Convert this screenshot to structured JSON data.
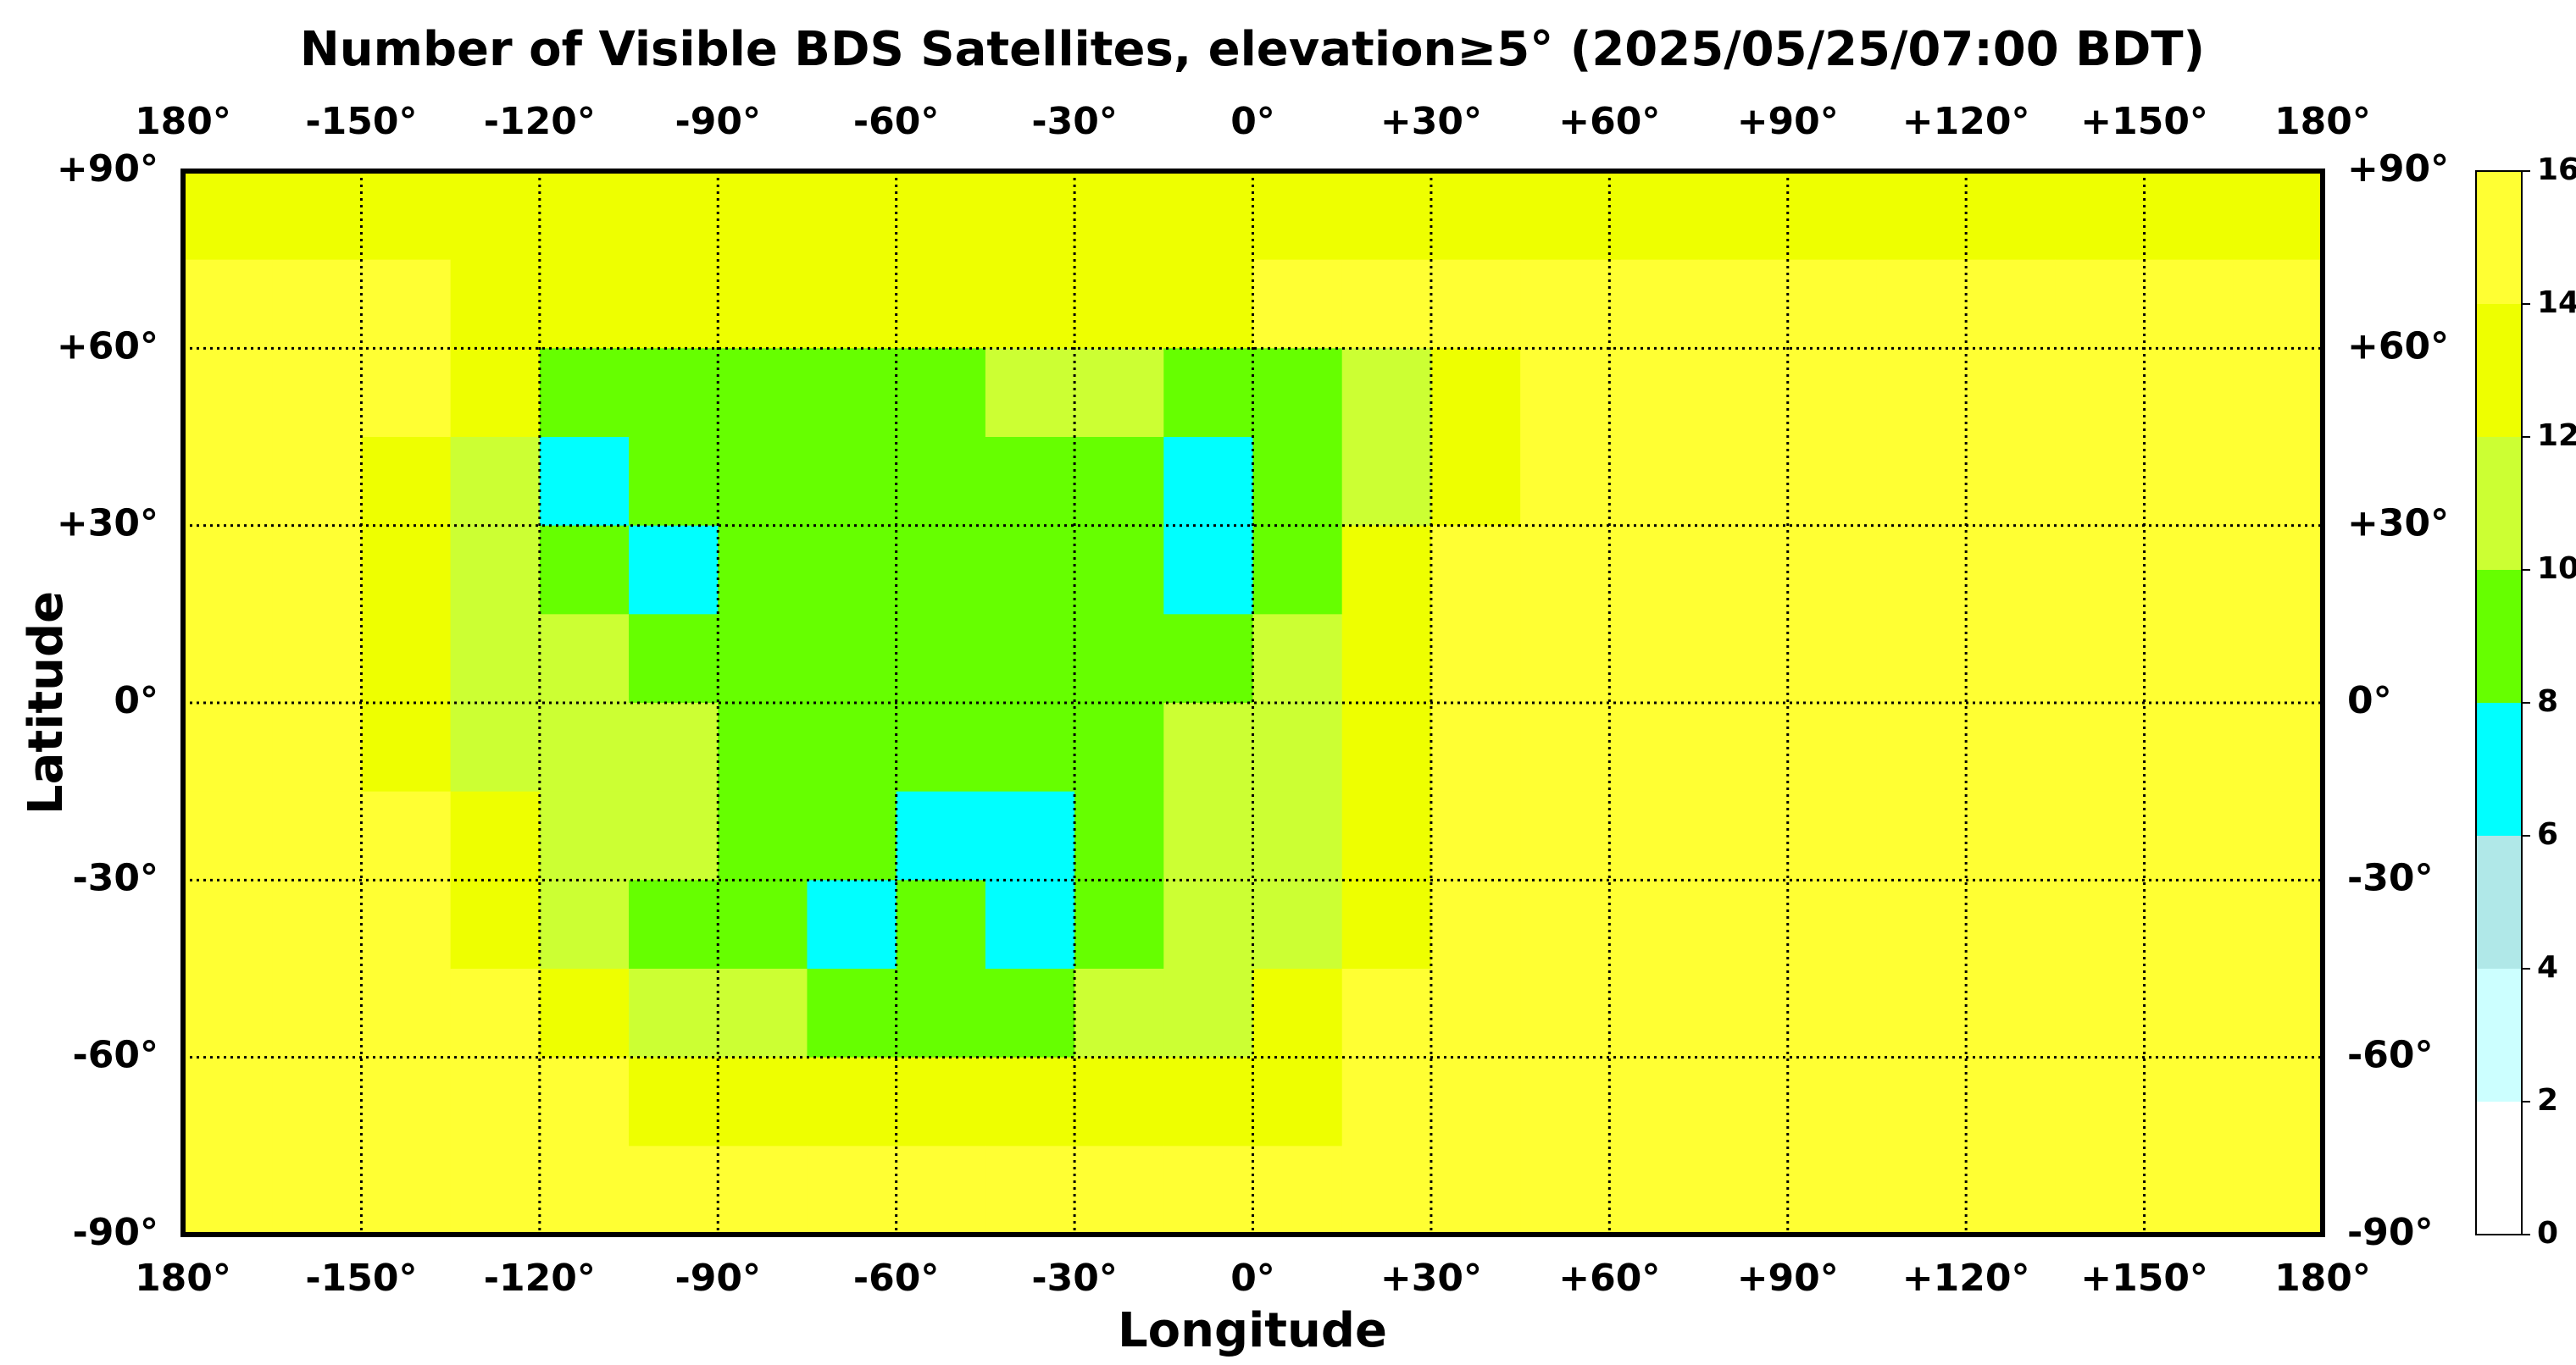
{
  "chart_data": {
    "type": "heatmap",
    "title": "Number of Visible BDS Satellites, elevation≥5° (2025/05/25/07:00 BDT)",
    "x_label": "Longitude",
    "y_label": "Latitude",
    "xlim": [
      -180,
      180
    ],
    "ylim": [
      -90,
      90
    ],
    "xticks": [
      {
        "value": -180,
        "label": "180°"
      },
      {
        "value": -150,
        "label": "-150°"
      },
      {
        "value": -120,
        "label": "-120°"
      },
      {
        "value": -90,
        "label": "-90°"
      },
      {
        "value": -60,
        "label": "-60°"
      },
      {
        "value": -30,
        "label": "-30°"
      },
      {
        "value": 0,
        "label": "0°"
      },
      {
        "value": 30,
        "label": "+30°"
      },
      {
        "value": 60,
        "label": "+60°"
      },
      {
        "value": 90,
        "label": "+90°"
      },
      {
        "value": 120,
        "label": "+120°"
      },
      {
        "value": 150,
        "label": "+150°"
      },
      {
        "value": 180,
        "label": "180°"
      }
    ],
    "yticks": [
      {
        "value": 90,
        "label": "+90°"
      },
      {
        "value": 60,
        "label": "+60°"
      },
      {
        "value": 30,
        "label": "+30°"
      },
      {
        "value": 0,
        "label": "0°"
      },
      {
        "value": -30,
        "label": "-30°"
      },
      {
        "value": -60,
        "label": "-60°"
      },
      {
        "value": -90,
        "label": "-90°"
      }
    ],
    "grid": true,
    "x_bins": [
      -180,
      -165,
      -150,
      -135,
      -120,
      -105,
      -90,
      -75,
      -60,
      -45,
      -30,
      -15,
      0,
      15,
      30,
      45,
      60,
      75,
      90,
      105,
      120,
      135,
      150,
      165,
      180
    ],
    "y_bins": [
      90,
      75,
      60,
      45,
      30,
      15,
      0,
      -15,
      -30,
      -45,
      -60,
      -75,
      -90
    ],
    "z": [
      [
        13,
        13,
        13,
        13,
        13,
        13,
        13,
        13,
        13,
        13,
        13,
        13,
        13,
        13,
        13,
        13,
        13,
        13,
        13,
        13,
        13,
        13,
        13,
        13
      ],
      [
        15,
        15,
        15,
        13,
        13,
        13,
        13,
        13,
        13,
        13,
        13,
        13,
        15,
        15,
        15,
        15,
        15,
        15,
        15,
        15,
        15,
        15,
        15,
        15
      ],
      [
        15,
        15,
        15,
        13,
        9,
        9,
        9,
        9,
        9,
        11,
        11,
        9,
        9,
        11,
        13,
        15,
        15,
        15,
        15,
        15,
        15,
        15,
        15,
        15
      ],
      [
        15,
        15,
        13,
        11,
        7,
        9,
        9,
        9,
        9,
        9,
        9,
        7,
        9,
        11,
        13,
        15,
        15,
        15,
        15,
        15,
        15,
        15,
        15,
        15
      ],
      [
        15,
        15,
        13,
        11,
        9,
        7,
        9,
        9,
        9,
        9,
        9,
        7,
        9,
        13,
        15,
        15,
        15,
        15,
        15,
        15,
        15,
        15,
        15,
        15
      ],
      [
        15,
        15,
        13,
        11,
        11,
        9,
        9,
        9,
        9,
        9,
        9,
        9,
        11,
        13,
        15,
        15,
        15,
        15,
        15,
        15,
        15,
        15,
        15,
        15
      ],
      [
        15,
        15,
        13,
        11,
        11,
        11,
        9,
        9,
        9,
        9,
        9,
        11,
        11,
        13,
        15,
        15,
        15,
        15,
        15,
        15,
        15,
        15,
        15,
        15
      ],
      [
        15,
        15,
        15,
        13,
        11,
        11,
        9,
        9,
        7,
        7,
        9,
        11,
        11,
        13,
        15,
        15,
        15,
        15,
        15,
        15,
        15,
        15,
        15,
        15
      ],
      [
        15,
        15,
        15,
        13,
        11,
        9,
        9,
        7,
        9,
        7,
        9,
        11,
        11,
        13,
        15,
        15,
        15,
        15,
        15,
        15,
        15,
        15,
        15,
        15
      ],
      [
        15,
        15,
        15,
        15,
        13,
        11,
        11,
        9,
        9,
        9,
        11,
        11,
        13,
        15,
        15,
        15,
        15,
        15,
        15,
        15,
        15,
        15,
        15,
        15
      ],
      [
        15,
        15,
        15,
        15,
        15,
        13,
        13,
        13,
        13,
        13,
        13,
        13,
        13,
        15,
        15,
        15,
        15,
        15,
        15,
        15,
        15,
        15,
        15,
        15
      ],
      [
        15,
        15,
        15,
        15,
        15,
        15,
        15,
        15,
        15,
        15,
        15,
        15,
        15,
        15,
        15,
        15,
        15,
        15,
        15,
        15,
        15,
        15,
        15,
        15
      ]
    ],
    "colorbar": {
      "ticks": [
        0,
        2,
        4,
        6,
        8,
        10,
        12,
        14,
        16
      ],
      "colors": [
        "#ffffff",
        "#ccffff",
        "#b0e8e8",
        "#00ffff",
        "#66ff00",
        "#ccff33",
        "#eeff00",
        "#ffff33"
      ]
    }
  }
}
